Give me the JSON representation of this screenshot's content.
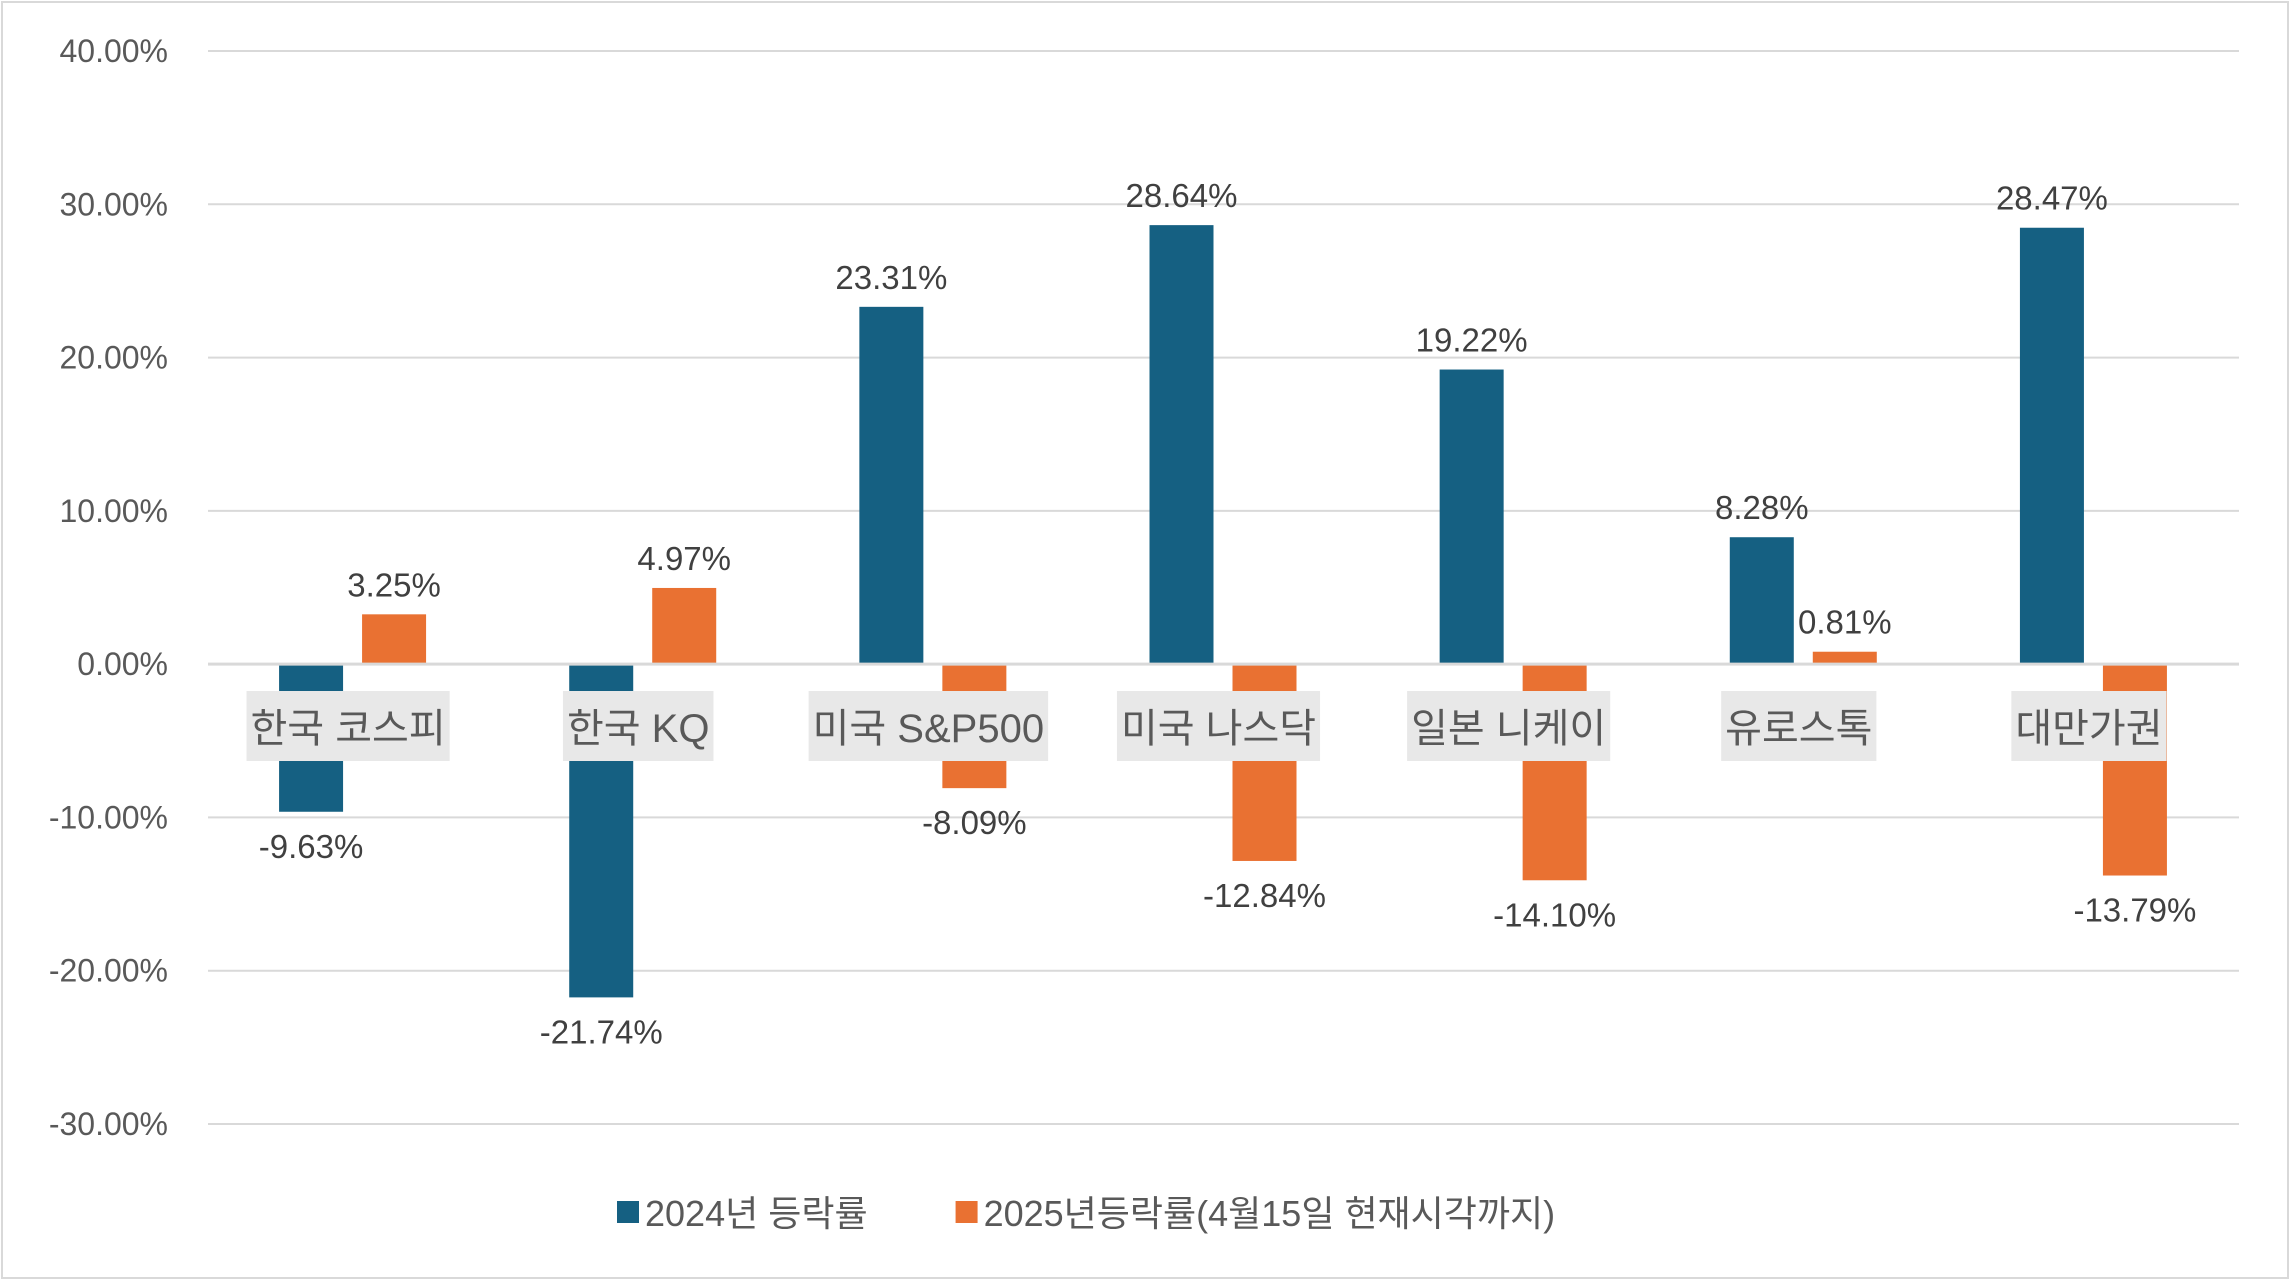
{
  "chart_data": {
    "type": "bar",
    "categories": [
      "한국 코스피",
      "한국 KQ",
      "미국 S&P500",
      "미국 나스닥",
      "일본 니케이",
      "유로스톡",
      "대만가권"
    ],
    "series": [
      {
        "name": "2024년 등락률",
        "color": "#156082",
        "values": [
          -9.63,
          -21.74,
          23.31,
          28.64,
          19.22,
          8.28,
          28.47
        ],
        "labels": [
          "-9.63%",
          "-21.74%",
          "23.31%",
          "28.64%",
          "19.22%",
          "8.28%",
          "28.47%"
        ]
      },
      {
        "name": "2025년등락률(4월15일 현재시각까지)",
        "color": "#E97132",
        "values": [
          3.25,
          4.97,
          -8.09,
          -12.84,
          -14.1,
          0.81,
          -13.79
        ],
        "labels": [
          "3.25%",
          "4.97%",
          "-8.09%",
          "-12.84%",
          "-14.10%",
          "0.81%",
          "-13.79%"
        ]
      }
    ],
    "ylim": [
      -30,
      40
    ],
    "yticks": [
      40,
      30,
      20,
      10,
      0,
      -10,
      -20,
      -30
    ],
    "ytick_labels": [
      "40.00%",
      "30.00%",
      "20.00%",
      "10.00%",
      "0.00%",
      "-10.00%",
      "-20.00%",
      "-30.00%"
    ],
    "grid": true,
    "legend": "bottom",
    "title": "",
    "xlabel": "",
    "ylabel": ""
  }
}
